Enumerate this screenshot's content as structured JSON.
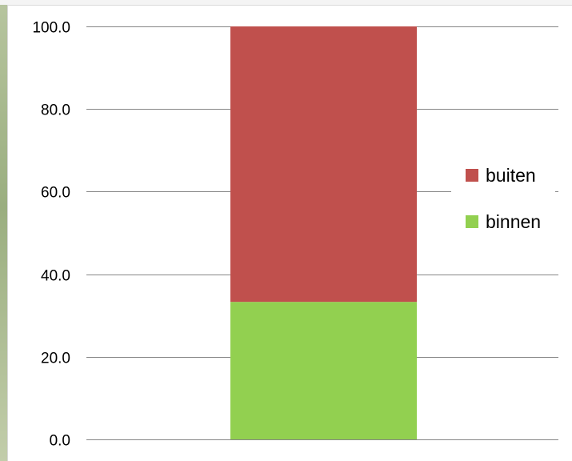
{
  "chart_data": {
    "type": "bar",
    "stacked": true,
    "categories": [
      ""
    ],
    "series": [
      {
        "name": "binnen",
        "values": [
          33.3
        ],
        "color": "#92d050"
      },
      {
        "name": "buiten",
        "values": [
          66.7
        ],
        "color": "#c0504d"
      }
    ],
    "ylim": [
      0,
      100
    ],
    "yticks": [
      "0.0",
      "20.0",
      "40.0",
      "60.0",
      "80.0",
      "100.0"
    ],
    "ytick_values": [
      0,
      20,
      40,
      60,
      80,
      100
    ],
    "grid": true,
    "legend": {
      "position": "right",
      "entries": [
        {
          "label": "buiten",
          "color": "#c0504d"
        },
        {
          "label": "binnen",
          "color": "#92d050"
        }
      ]
    }
  }
}
